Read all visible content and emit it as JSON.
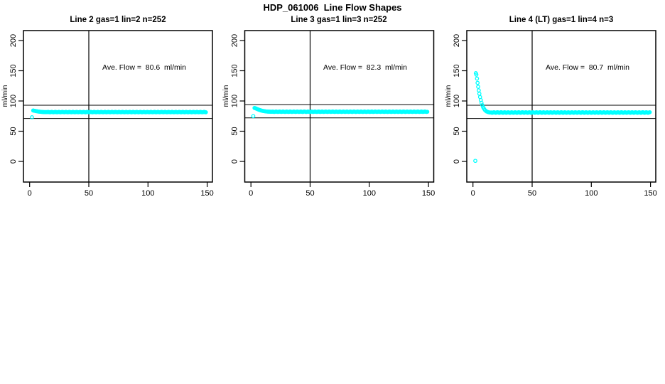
{
  "page_title": "HDP_061006  Line Flow Shapes",
  "colors": {
    "points": "#00ffff",
    "axis": "#000000",
    "background": "#ffffff"
  },
  "chart_data": [
    {
      "type": "scatter",
      "title": "Line 2 gas=1 lin=2 n=252",
      "annotation": "Ave. Flow =  80.6  ml/min",
      "ave_flow_ml_min": 80.6,
      "n_points": 252,
      "ylabel": "ml/min",
      "xlim": [
        0,
        150
      ],
      "ylim": [
        -34,
        216
      ],
      "xticks": [
        0,
        50,
        100,
        150
      ],
      "yticks": [
        0,
        50,
        100,
        150,
        200
      ],
      "vline_x": 50,
      "hlines": [
        93,
        71
      ],
      "outlier_points": [
        [
          2,
          73
        ]
      ],
      "transient_points": [
        [
          3,
          84.2
        ],
        [
          3.6,
          84.0
        ],
        [
          4.2,
          83.8
        ],
        [
          4.8,
          83.5
        ],
        [
          5.4,
          83.2
        ],
        [
          6.0,
          83.0
        ],
        [
          6.6,
          82.8
        ],
        [
          7.2,
          82.6
        ],
        [
          7.8,
          82.4
        ],
        [
          8.4,
          82.3
        ],
        [
          9.0,
          82.1
        ],
        [
          9.6,
          82.0
        ],
        [
          10.2,
          81.9
        ],
        [
          10.8,
          81.8
        ],
        [
          11.4,
          81.8
        ],
        [
          12.0,
          81.7
        ],
        [
          12.6,
          81.7
        ],
        [
          13.2,
          81.6
        ],
        [
          13.8,
          81.6
        ],
        [
          14.4,
          81.6
        ]
      ],
      "steady_band": {
        "x_start": 15.0,
        "x_end": 149.4,
        "x_step": 0.59,
        "value": 81.6,
        "jitter": 0.35
      }
    },
    {
      "type": "scatter",
      "title": "Line 3 gas=1 lin=3 n=252",
      "annotation": "Ave. Flow =  82.3  ml/min",
      "ave_flow_ml_min": 82.3,
      "n_points": 252,
      "ylabel": "ml/min",
      "xlim": [
        0,
        150
      ],
      "ylim": [
        -34,
        216
      ],
      "xticks": [
        0,
        50,
        100,
        150
      ],
      "yticks": [
        0,
        50,
        100,
        150,
        200
      ],
      "vline_x": 50,
      "hlines": [
        94,
        72
      ],
      "outlier_points": [
        [
          2,
          75
        ]
      ],
      "transient_points": [
        [
          3,
          88.5
        ],
        [
          3.6,
          88.1
        ],
        [
          4.2,
          87.6
        ],
        [
          4.8,
          87.1
        ],
        [
          5.4,
          86.6
        ],
        [
          6.0,
          86.1
        ],
        [
          6.6,
          85.6
        ],
        [
          7.2,
          85.2
        ],
        [
          7.8,
          84.8
        ],
        [
          8.4,
          84.4
        ],
        [
          9.0,
          84.1
        ],
        [
          9.6,
          83.8
        ],
        [
          10.2,
          83.5
        ],
        [
          10.8,
          83.3
        ],
        [
          11.4,
          83.1
        ],
        [
          12.0,
          82.9
        ],
        [
          12.6,
          82.7
        ],
        [
          13.2,
          82.6
        ],
        [
          13.8,
          82.5
        ],
        [
          14.4,
          82.4
        ],
        [
          15.0,
          82.3
        ],
        [
          15.6,
          82.3
        ],
        [
          16.2,
          82.2
        ],
        [
          16.8,
          82.2
        ],
        [
          17.4,
          82.2
        ],
        [
          18.0,
          82.2
        ]
      ],
      "steady_band": {
        "x_start": 18.6,
        "x_end": 149.4,
        "x_step": 0.59,
        "value": 82.2,
        "jitter": 0.35
      }
    },
    {
      "type": "scatter",
      "title": "Line 4 (LT) gas=1 lin=4 n=3",
      "annotation": "Ave. Flow =  80.7  ml/min",
      "ave_flow_ml_min": 80.7,
      "n_points": 3,
      "ylabel": "ml/min",
      "xlim": [
        0,
        150
      ],
      "ylim": [
        -34,
        216
      ],
      "xticks": [
        0,
        50,
        100,
        150
      ],
      "yticks": [
        0,
        50,
        100,
        150,
        200
      ],
      "vline_x": 50,
      "hlines": [
        93,
        71
      ],
      "outlier_points": [
        [
          2,
          1
        ]
      ],
      "transient_points": [
        [
          2.4,
          146
        ],
        [
          2.9,
          143.5
        ],
        [
          3.4,
          137
        ],
        [
          3.9,
          130
        ],
        [
          4.4,
          123.5
        ],
        [
          4.9,
          117.5
        ],
        [
          5.4,
          112
        ],
        [
          6.0,
          106.5
        ],
        [
          6.6,
          101.5
        ],
        [
          7.2,
          97
        ],
        [
          7.9,
          93
        ],
        [
          8.6,
          89.8
        ],
        [
          9.3,
          87.2
        ],
        [
          10.0,
          85.2
        ],
        [
          10.8,
          83.7
        ],
        [
          11.6,
          82.6
        ],
        [
          12.4,
          81.9
        ],
        [
          13.2,
          81.4
        ],
        [
          14.0,
          81.1
        ],
        [
          14.8,
          80.9
        ]
      ],
      "steady_band": {
        "x_start": 15.4,
        "x_end": 149.4,
        "x_step": 0.62,
        "value": 80.9,
        "jitter": 0.5
      }
    }
  ]
}
